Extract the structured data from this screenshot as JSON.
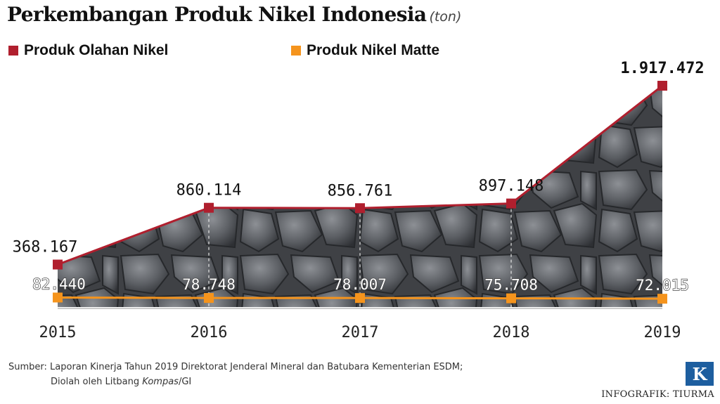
{
  "title": "Perkembangan Produk Nikel Indonesia",
  "unit": "(ton)",
  "colors": {
    "olahan": "#b01f2e",
    "matte": "#f5941d",
    "area": "#4a4c50"
  },
  "legend": [
    {
      "name": "Produk Olahan Nikel",
      "color": "#b01f2e"
    },
    {
      "name": "Produk Nikel Matte",
      "color": "#f5941d"
    }
  ],
  "chart_data": {
    "type": "line",
    "title": "Perkembangan Produk Nikel Indonesia",
    "ylabel": "ton",
    "categories": [
      "2015",
      "2016",
      "2017",
      "2018",
      "2019"
    ],
    "ylim": [
      0,
      1917472
    ],
    "series": [
      {
        "name": "Produk Olahan Nikel",
        "values": [
          368167,
          860114,
          856761,
          897148,
          1917472
        ],
        "labels": [
          "368.167",
          "860.114",
          "856.761",
          "897.148",
          "1.917.472"
        ]
      },
      {
        "name": "Produk Nikel Matte",
        "values": [
          82440,
          78748,
          78007,
          75708,
          72015
        ],
        "labels": [
          "82.440",
          "78.748",
          "78.007",
          "75.708",
          "72.015"
        ]
      }
    ]
  },
  "source": {
    "line1": "Sumber: Laporan Kinerja Tahun 2019 Direktorat Jenderal Mineral dan Batubara Kementerian ESDM;",
    "line2_prefix": "Diolah oleh Litbang ",
    "line2_italic": "Kompas",
    "line2_suffix": "/GI"
  },
  "logo_letter": "K",
  "credit": "INFOGRAFIK: TIURMA"
}
